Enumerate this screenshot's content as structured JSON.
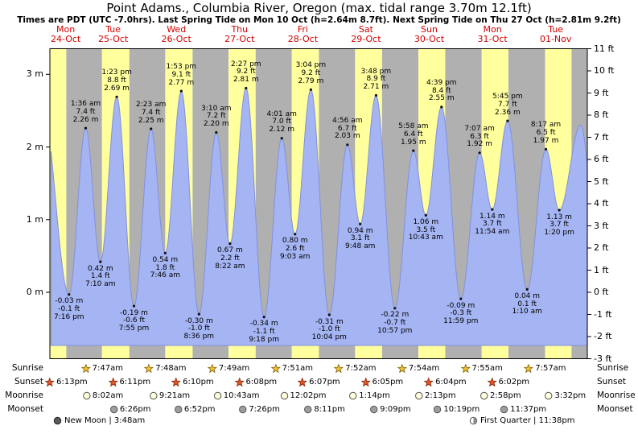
{
  "header": {
    "title": "Point Adams., Columbia River, Oregon (max. tidal range 3.70m 12.1ft)",
    "subtitle": "Times are PDT (UTC -7.0hrs). Last Spring Tide on Mon 10 Oct (h=2.64m 8.7ft). Next Spring Tide on Thu 27 Oct (h=2.81m 9.2ft)"
  },
  "colors": {
    "day_band": "#ffff9e",
    "night_band": "#b0b0b0",
    "tide_fill": "#a5b4f2",
    "tide_stroke": "#8291dd",
    "day_label": "#d40000",
    "sunrise_star": "#f2c12e",
    "sunrise_star_stroke": "#8a6d1a",
    "sunset_star": "#e2572a",
    "sunset_star_stroke": "#8f2e0e",
    "moonrise_fill": "#ffffd9",
    "moonset_fill": "#9e9e9e",
    "moon_stroke": "#555555"
  },
  "chart_data": {
    "type": "area",
    "title": "Point Adams., Columbia River, Oregon (max. tidal range 3.70m 12.1ft)",
    "t_reference": "hours since Mon 24 Oct 00:00 PDT",
    "ylim_ft": [
      -3,
      11
    ],
    "grid": false,
    "m_ticks": [
      {
        "label": "3 m",
        "m": 3
      },
      {
        "label": "2 m",
        "m": 2
      },
      {
        "label": "1 m",
        "m": 1
      },
      {
        "label": "0 m",
        "m": 0
      }
    ],
    "ft_ticks": [
      {
        "label": "11 ft",
        "ft": 11
      },
      {
        "label": "10 ft",
        "ft": 10
      },
      {
        "label": "9 ft",
        "ft": 9
      },
      {
        "label": "8 ft",
        "ft": 8
      },
      {
        "label": "7 ft",
        "ft": 7
      },
      {
        "label": "6 ft",
        "ft": 6
      },
      {
        "label": "5 ft",
        "ft": 5
      },
      {
        "label": "4 ft",
        "ft": 4
      },
      {
        "label": "3 ft",
        "ft": 3
      },
      {
        "label": "2 ft",
        "ft": 2
      },
      {
        "label": "1 ft",
        "ft": 1
      },
      {
        "label": "0 ft",
        "ft": 0
      },
      {
        "label": "-1 ft",
        "ft": -1
      },
      {
        "label": "-2 ft",
        "ft": -2
      },
      {
        "label": "-3 ft",
        "ft": -3
      }
    ],
    "days": [
      {
        "dow": "Mon",
        "date": "24-Oct",
        "t": 18
      },
      {
        "dow": "Tue",
        "date": "25-Oct",
        "t": 36
      },
      {
        "dow": "Wed",
        "date": "26-Oct",
        "t": 60
      },
      {
        "dow": "Thu",
        "date": "27-Oct",
        "t": 84
      },
      {
        "dow": "Fri",
        "date": "28-Oct",
        "t": 108
      },
      {
        "dow": "Sat",
        "date": "29-Oct",
        "t": 132
      },
      {
        "dow": "Sun",
        "date": "30-Oct",
        "t": 156
      },
      {
        "dow": "Mon",
        "date": "31-Oct",
        "t": 180
      },
      {
        "dow": "Tue",
        "date": "01-Nov",
        "t": 204
      }
    ],
    "tide_events": [
      {
        "type": "L",
        "t": 19.267,
        "m": "-0.03",
        "ft": "-0.1",
        "time": "7:16 pm"
      },
      {
        "type": "H",
        "t": 25.6,
        "m": "2.26",
        "ft": "7.4",
        "time": "1:36 am"
      },
      {
        "type": "L",
        "t": 31.167,
        "m": "0.42",
        "ft": "1.4",
        "time": "7:10 am"
      },
      {
        "type": "H",
        "t": 37.383,
        "m": "2.69",
        "ft": "8.8",
        "time": "1:23 pm"
      },
      {
        "type": "L",
        "t": 43.917,
        "m": "-0.19",
        "ft": "-0.6",
        "time": "7:55 pm"
      },
      {
        "type": "H",
        "t": 50.383,
        "m": "2.25",
        "ft": "7.4",
        "time": "2:23 am"
      },
      {
        "type": "L",
        "t": 55.767,
        "m": "0.54",
        "ft": "1.8",
        "time": "7:46 am"
      },
      {
        "type": "H",
        "t": 61.883,
        "m": "2.77",
        "ft": "9.1",
        "time": "1:53 pm"
      },
      {
        "type": "L",
        "t": 68.6,
        "m": "-0.30",
        "ft": "-1.0",
        "time": "8:36 pm"
      },
      {
        "type": "H",
        "t": 75.167,
        "m": "2.20",
        "ft": "7.2",
        "time": "3:10 am"
      },
      {
        "type": "L",
        "t": 80.367,
        "m": "0.67",
        "ft": "2.2",
        "time": "8:22 am"
      },
      {
        "type": "H",
        "t": 86.45,
        "m": "2.81",
        "ft": "9.2",
        "time": "2:27 pm"
      },
      {
        "type": "L",
        "t": 93.3,
        "m": "-0.34",
        "ft": "-1.1",
        "time": "9:18 pm"
      },
      {
        "type": "H",
        "t": 100.017,
        "m": "2.12",
        "ft": "7.0",
        "time": "4:01 am"
      },
      {
        "type": "L",
        "t": 105.05,
        "m": "0.80",
        "ft": "2.6",
        "time": "9:03 am"
      },
      {
        "type": "H",
        "t": 111.067,
        "m": "2.79",
        "ft": "9.2",
        "time": "3:04 pm"
      },
      {
        "type": "L",
        "t": 118.067,
        "m": "-0.31",
        "ft": "-1.0",
        "time": "10:04 pm"
      },
      {
        "type": "H",
        "t": 124.933,
        "m": "2.03",
        "ft": "6.7",
        "time": "4:56 am"
      },
      {
        "type": "L",
        "t": 129.8,
        "m": "0.94",
        "ft": "3.1",
        "time": "9:48 am"
      },
      {
        "type": "H",
        "t": 135.8,
        "m": "2.71",
        "ft": "8.9",
        "time": "3:48 pm"
      },
      {
        "type": "L",
        "t": 142.95,
        "m": "-0.22",
        "ft": "-0.7",
        "time": "10:57 pm"
      },
      {
        "type": "H",
        "t": 149.967,
        "m": "1.95",
        "ft": "6.4",
        "time": "5:58 am"
      },
      {
        "type": "L",
        "t": 154.717,
        "m": "1.06",
        "ft": "3.5",
        "time": "10:43 am"
      },
      {
        "type": "H",
        "t": 160.65,
        "m": "2.55",
        "ft": "8.4",
        "time": "4:39 pm"
      },
      {
        "type": "L",
        "t": 167.983,
        "m": "-0.09",
        "ft": "-0.3",
        "time": "11:59 pm"
      },
      {
        "type": "H",
        "t": 175.117,
        "m": "1.92",
        "ft": "6.3",
        "time": "7:07 am"
      },
      {
        "type": "L",
        "t": 179.9,
        "m": "1.14",
        "ft": "3.7",
        "time": "11:54 am"
      },
      {
        "type": "H",
        "t": 185.75,
        "m": "2.36",
        "ft": "7.7",
        "time": "5:45 pm"
      },
      {
        "type": "L",
        "t": 193.167,
        "m": "0.04",
        "ft": "0.1",
        "time": "1:10 am"
      },
      {
        "type": "H",
        "t": 200.283,
        "m": "1.97",
        "ft": "6.5",
        "time": "8:17 am"
      },
      {
        "type": "L",
        "t": 205.333,
        "m": "1.13",
        "ft": "3.7",
        "time": "1:20 pm"
      }
    ],
    "sun_moon": {
      "row_labels": [
        "Sunrise",
        "Sunset",
        "Moonrise",
        "Moonset"
      ],
      "sunrise": [
        {
          "time": "7:47am",
          "t": 31.783
        },
        {
          "time": "7:48am",
          "t": 55.8
        },
        {
          "time": "7:49am",
          "t": 79.817
        },
        {
          "time": "7:51am",
          "t": 103.85
        },
        {
          "time": "7:52am",
          "t": 127.867
        },
        {
          "time": "7:54am",
          "t": 151.9
        },
        {
          "time": "7:55am",
          "t": 175.917
        },
        {
          "time": "7:57am",
          "t": 199.95
        }
      ],
      "sunset": [
        {
          "time": "6:13pm",
          "t": 18.217
        },
        {
          "time": "6:11pm",
          "t": 42.183
        },
        {
          "time": "6:10pm",
          "t": 66.167
        },
        {
          "time": "6:08pm",
          "t": 90.133
        },
        {
          "time": "6:07pm",
          "t": 114.117
        },
        {
          "time": "6:05pm",
          "t": 138.083
        },
        {
          "time": "6:04pm",
          "t": 162.067
        },
        {
          "time": "6:02pm",
          "t": 186.033
        }
      ],
      "moonrise": [
        {
          "time": "8:02am",
          "t": 32.033
        },
        {
          "time": "9:21am",
          "t": 57.35
        },
        {
          "time": "10:43am",
          "t": 82.717
        },
        {
          "time": "12:02pm",
          "t": 108.033
        },
        {
          "time": "1:14pm",
          "t": 133.233
        },
        {
          "time": "2:13pm",
          "t": 158.217
        },
        {
          "time": "2:58pm",
          "t": 182.967
        },
        {
          "time": "3:32pm",
          "t": 207.533
        }
      ],
      "moonset": [
        {
          "time": "6:26pm",
          "t": 42.433
        },
        {
          "time": "6:52pm",
          "t": 66.867
        },
        {
          "time": "7:26pm",
          "t": 91.433
        },
        {
          "time": "8:11pm",
          "t": 116.183
        },
        {
          "time": "9:09pm",
          "t": 141.15
        },
        {
          "time": "10:19pm",
          "t": 166.317
        },
        {
          "time": "11:37pm",
          "t": 191.617
        }
      ]
    },
    "notes": [
      {
        "icon": "new-moon",
        "label": "New Moon",
        "time": "3:48am"
      },
      {
        "icon": "first-quarter",
        "label": "First Quarter",
        "time": "11:38pm"
      }
    ]
  }
}
